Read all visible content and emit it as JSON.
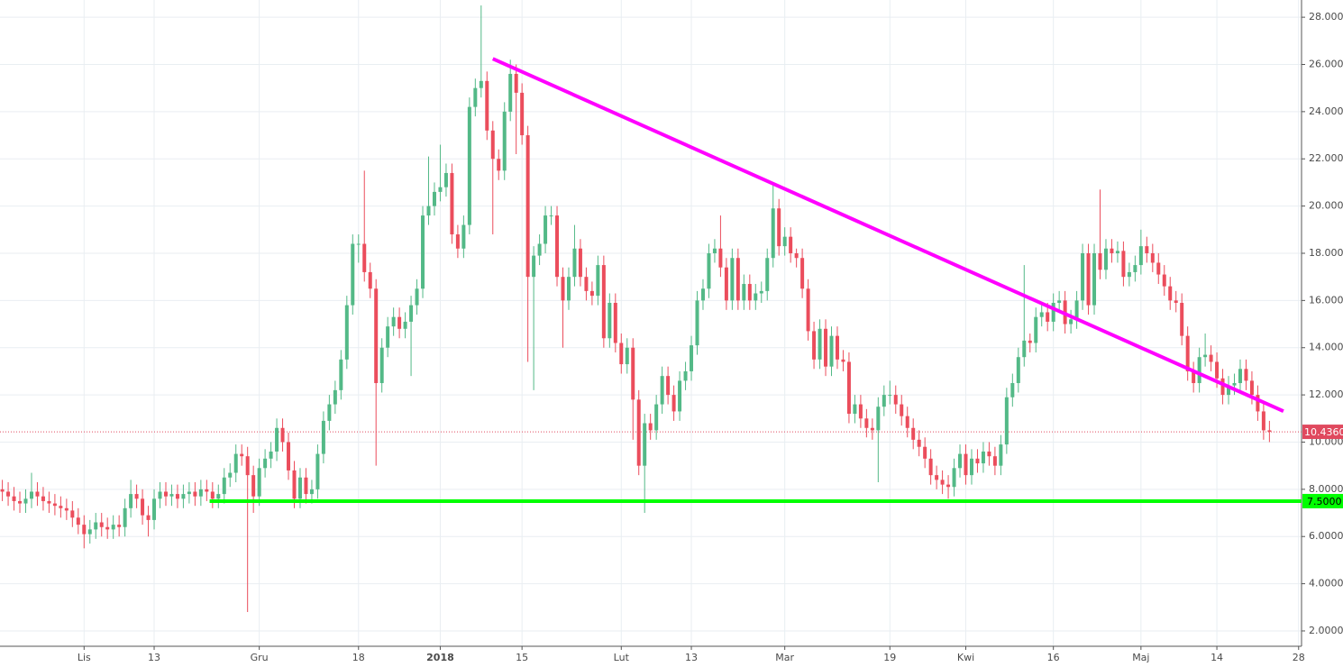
{
  "chart_data": {
    "type": "candlestick",
    "up_color": "#53b987",
    "down_color": "#eb4d5c",
    "grid": true,
    "xlim": [
      -0.4,
      222.5
    ],
    "ylim": [
      1.35,
      28.73
    ],
    "xticks": [
      {
        "value": 14,
        "label": "Lis"
      },
      {
        "value": 26,
        "label": "13"
      },
      {
        "value": 44,
        "label": "Gru"
      },
      {
        "value": 61,
        "label": "18"
      },
      {
        "value": 75,
        "label": "2018"
      },
      {
        "value": 89,
        "label": "15"
      },
      {
        "value": 106,
        "label": "Lut"
      },
      {
        "value": 118,
        "label": "13"
      },
      {
        "value": 134,
        "label": "Mar"
      },
      {
        "value": 152,
        "label": "19"
      },
      {
        "value": 165,
        "label": "Kwi"
      },
      {
        "value": 180,
        "label": "16"
      },
      {
        "value": 195,
        "label": "Maj"
      },
      {
        "value": 208,
        "label": "14"
      },
      {
        "value": 222,
        "label": "28"
      }
    ],
    "yticks": [
      {
        "value": 2,
        "label": "2.0000"
      },
      {
        "value": 4,
        "label": "4.0000"
      },
      {
        "value": 6,
        "label": "6.0000"
      },
      {
        "value": 8,
        "label": "8.0000"
      },
      {
        "value": 10,
        "label": "10.0000"
      },
      {
        "value": 12,
        "label": "12.0000"
      },
      {
        "value": 14,
        "label": "14.0000"
      },
      {
        "value": 16,
        "label": "16.0000"
      },
      {
        "value": 18,
        "label": "18.0000"
      },
      {
        "value": 20,
        "label": "20.0000"
      },
      {
        "value": 22,
        "label": "22.0000"
      },
      {
        "value": 24,
        "label": "24.0000"
      },
      {
        "value": 26,
        "label": "26.0000"
      },
      {
        "value": 28,
        "label": "28.0000"
      }
    ],
    "open": [
      8,
      7.9,
      7.7,
      7.5,
      7.4,
      7.6,
      7.9,
      7.7,
      7.5,
      7.4,
      7.3,
      7.2,
      7.1,
      6.8,
      6.5,
      6.1,
      6.3,
      6.6,
      6.4,
      6.3,
      6.5,
      6.4,
      7.2,
      7.8,
      7.6,
      6.9,
      6.7,
      7.6,
      7.9,
      7.7,
      7.8,
      7.6,
      7.8,
      7.9,
      7.7,
      8,
      7.9,
      7.6,
      7.8,
      8.5,
      8.7,
      9.5,
      9.4,
      8.6,
      7.7,
      8.9,
      9.3,
      9.6,
      10.6,
      10,
      8.8,
      7.6,
      8.5,
      7.8,
      8,
      9.5,
      10.9,
      11.6,
      12.2,
      13.5,
      15.8,
      18.4,
      18.4,
      17.2,
      16.5,
      12.5,
      14,
      14.9,
      15.3,
      14.8,
      15.1,
      15.8,
      16.5,
      19.6,
      20,
      20.6,
      20.8,
      21.4,
      18.8,
      18.2,
      19.2,
      24.2,
      25,
      25.3,
      23.2,
      22,
      21.5,
      24,
      25.6,
      24.8,
      23,
      17,
      17.9,
      18.4,
      19.6,
      19.6,
      17,
      16,
      17,
      18.2,
      17,
      16.4,
      16.2,
      17.5,
      14.4,
      15.9,
      14.2,
      13.3,
      14,
      11.8,
      9,
      10.8,
      10.5,
      11.6,
      12.8,
      12,
      11.3,
      12.6,
      13,
      14.1,
      16,
      16.5,
      18,
      18.2,
      17.4,
      16,
      17.8,
      16,
      16.7,
      16,
      16.3,
      16.4,
      17.8,
      19.9,
      18.3,
      18.7,
      18,
      17.8,
      16.5,
      14.7,
      13.5,
      14.8,
      13.2,
      14.5,
      13.5,
      13.4,
      11.2,
      11.6,
      11,
      10.6,
      10.5,
      11.5,
      12,
      12,
      11.6,
      11.1,
      10.6,
      10.1,
      9.8,
      9.3,
      8.6,
      8.4,
      8.2,
      8.1,
      8.9,
      9.5,
      8.6,
      9.3,
      9.1,
      9.6,
      9.4,
      9,
      9.9,
      11.9,
      12.5,
      13.6,
      14.3,
      14.2,
      15.3,
      15.5,
      15.1,
      15.9,
      16,
      15,
      15.2,
      16,
      18,
      15.8,
      18,
      17.3,
      18.2,
      18,
      18.1,
      17,
      17.2,
      17.5,
      18.3,
      18,
      17.6,
      17.1,
      16.6,
      16,
      15.9,
      14.5,
      13,
      12.5,
      13.6,
      13.7,
      13.4,
      12.7,
      12,
      12.4,
      12.5,
      13.1,
      12.6,
      12,
      11.3,
      10.5
    ],
    "high": [
      8.4,
      8.3,
      8.1,
      7.9,
      8,
      8.7,
      8.3,
      8.1,
      7.9,
      7.8,
      7.7,
      7.6,
      7.5,
      7.2,
      6.9,
      6.7,
      7,
      7,
      6.8,
      6.9,
      6.9,
      7.6,
      8.4,
      8.2,
      8,
      7.3,
      8,
      8.3,
      8.3,
      8.2,
      8.2,
      8.2,
      8.3,
      8.3,
      8.4,
      8.4,
      8.3,
      8.2,
      8.9,
      9.1,
      9.9,
      9.9,
      9.8,
      9,
      9.3,
      9.7,
      10,
      11,
      11,
      10.4,
      9.2,
      8.9,
      8.9,
      8.4,
      9.9,
      11.3,
      12,
      12.6,
      13.9,
      16.2,
      18.8,
      18.8,
      21.5,
      17.6,
      16.9,
      14.4,
      15.3,
      15.7,
      15.7,
      15.5,
      16.2,
      16.9,
      20,
      22.1,
      21,
      22.6,
      21.8,
      21.8,
      19.2,
      19.6,
      24.6,
      25.4,
      28.5,
      25.7,
      23.6,
      22.4,
      24.4,
      26.2,
      26,
      25.2,
      23.4,
      18.3,
      18.8,
      20,
      20,
      20,
      17.4,
      17.4,
      19.2,
      18.6,
      17.4,
      16.8,
      17.9,
      17.9,
      16.3,
      16.3,
      14.6,
      14.4,
      14.4,
      12.2,
      11.2,
      11.2,
      12,
      13.2,
      13.2,
      12.4,
      13,
      13.4,
      14.5,
      16.4,
      16.9,
      18.4,
      18.6,
      19.6,
      17.8,
      18.2,
      18.2,
      17.1,
      17.1,
      16.7,
      16.8,
      18.2,
      20.9,
      20.3,
      19.1,
      19.1,
      18.2,
      18.2,
      16.9,
      15.1,
      15.2,
      15.2,
      14.9,
      14.9,
      13.9,
      13.8,
      12,
      12,
      11.4,
      11,
      11.9,
      12.4,
      12.6,
      12.4,
      12,
      11.5,
      11,
      10.5,
      10.2,
      9.7,
      9,
      8.8,
      8.6,
      9.3,
      9.9,
      9.9,
      9.7,
      9.7,
      10,
      10,
      9.8,
      10.3,
      12.3,
      12.9,
      14,
      17.5,
      14.6,
      15.7,
      15.9,
      15.9,
      16.3,
      16.4,
      16.4,
      15.6,
      16.4,
      18.4,
      18.4,
      18.4,
      20.7,
      18.6,
      18.6,
      18.5,
      18.5,
      17.6,
      17.9,
      19,
      18.7,
      18.4,
      18,
      17.5,
      17,
      16.4,
      16.3,
      14.9,
      13.4,
      14,
      14.6,
      14.1,
      13.8,
      13.1,
      12.8,
      12.9,
      13.5,
      13.5,
      13,
      12.4,
      11.7,
      10.9
    ],
    "low": [
      7.5,
      7.3,
      7.1,
      7,
      7,
      7.2,
      7.3,
      7.1,
      7,
      6.9,
      6.8,
      6.7,
      6.4,
      6.1,
      5.5,
      5.7,
      5.9,
      6,
      5.9,
      5.9,
      6,
      6,
      6.8,
      7.2,
      6.5,
      6,
      6.3,
      7.2,
      7.3,
      7.3,
      7.2,
      7.2,
      7.4,
      7.3,
      7.3,
      7.5,
      7.2,
      7.2,
      7.4,
      8.1,
      8.3,
      9,
      2.8,
      7,
      7.3,
      8.5,
      8.9,
      9.2,
      9.6,
      8.4,
      7.2,
      7.2,
      7.4,
      7.4,
      7.6,
      9.1,
      10.5,
      11.2,
      11.8,
      13.1,
      15.4,
      17.6,
      16.8,
      16.1,
      9,
      12.1,
      13.6,
      14.5,
      14.4,
      14.4,
      12.8,
      15.4,
      16.1,
      19.2,
      19.6,
      20.2,
      20.4,
      18.4,
      17.8,
      17.8,
      18.8,
      23.8,
      24.6,
      22.8,
      18.8,
      21.1,
      21.1,
      23.6,
      22.2,
      22.6,
      13.4,
      12.2,
      17.5,
      18,
      19.2,
      16.6,
      14,
      15.6,
      16.6,
      16.6,
      16,
      15.8,
      15.8,
      14,
      14,
      13.8,
      12.9,
      12.9,
      10.1,
      8.6,
      7,
      10.1,
      10.1,
      11.2,
      11.6,
      10.9,
      10.9,
      12.2,
      12.6,
      13.7,
      15.6,
      16.1,
      17.6,
      17,
      15.6,
      15.6,
      15.6,
      15.6,
      15.6,
      15.6,
      15.9,
      16,
      17.4,
      17.9,
      17.9,
      17.6,
      17.4,
      16.1,
      14.3,
      13.1,
      13.1,
      12.8,
      12.8,
      13.1,
      13,
      10.8,
      10.8,
      10.6,
      10.2,
      10.1,
      8.3,
      11.1,
      11.6,
      11.2,
      10.7,
      10.2,
      9.7,
      9.4,
      8.9,
      8.2,
      8,
      7.8,
      7.6,
      7.7,
      8.5,
      8.2,
      8.2,
      8.7,
      8.7,
      9,
      8.6,
      8.6,
      9.5,
      11.5,
      12.1,
      13.2,
      13.8,
      13.8,
      14.9,
      14.7,
      14.7,
      15.5,
      14.6,
      14.6,
      14.8,
      15.6,
      15.4,
      15.4,
      16.9,
      16.9,
      17.6,
      17.6,
      16.6,
      16.6,
      16.8,
      17.1,
      17.6,
      17.2,
      16.7,
      16.2,
      15.6,
      15.5,
      14.1,
      12.6,
      12.1,
      12.1,
      13.2,
      13,
      12.3,
      11.6,
      11.6,
      12,
      12.1,
      12.2,
      11.6,
      10.9,
      10.1,
      10
    ],
    "close": [
      7.9,
      7.7,
      7.5,
      7.4,
      7.6,
      7.9,
      7.7,
      7.5,
      7.4,
      7.3,
      7.2,
      7.1,
      6.8,
      6.5,
      6.1,
      6.3,
      6.6,
      6.4,
      6.3,
      6.5,
      6.4,
      7.2,
      7.8,
      7.6,
      6.9,
      6.7,
      7.6,
      7.9,
      7.7,
      7.8,
      7.6,
      7.8,
      7.9,
      7.7,
      8,
      7.9,
      7.6,
      7.8,
      8.5,
      8.7,
      9.5,
      9.4,
      8.6,
      7.7,
      8.9,
      9.3,
      9.6,
      10.6,
      10,
      8.8,
      7.6,
      8.5,
      7.8,
      8,
      9.5,
      10.9,
      11.6,
      12.2,
      13.5,
      15.8,
      18.4,
      18.4,
      17.2,
      16.5,
      12.5,
      14,
      14.9,
      15.3,
      14.8,
      15.1,
      15.8,
      16.5,
      19.6,
      20,
      20.6,
      20.8,
      21.4,
      18.8,
      18.2,
      19.2,
      24.2,
      25,
      25.3,
      23.2,
      22,
      21.5,
      24,
      25.6,
      24.8,
      23,
      17,
      17.9,
      18.4,
      19.6,
      19.6,
      17,
      16,
      17,
      18.2,
      17,
      16.4,
      16.2,
      17.5,
      14.4,
      15.9,
      14.2,
      13.3,
      14,
      11.8,
      9,
      10.8,
      10.5,
      11.6,
      12.8,
      12,
      11.3,
      12.6,
      13,
      14.1,
      16,
      16.5,
      18,
      18.2,
      17.4,
      16,
      17.8,
      16,
      16.7,
      16,
      16.3,
      16.4,
      17.8,
      19.9,
      18.3,
      18.7,
      18,
      17.8,
      16.5,
      14.7,
      13.5,
      14.8,
      13.2,
      14.5,
      13.5,
      13.4,
      11.2,
      11.6,
      11,
      10.6,
      10.5,
      11.5,
      12,
      12,
      11.6,
      11.1,
      10.6,
      10.1,
      9.8,
      9.3,
      8.6,
      8.4,
      8.2,
      8.1,
      8.9,
      9.5,
      8.6,
      9.3,
      9.1,
      9.6,
      9.4,
      9,
      9.9,
      11.9,
      12.5,
      13.6,
      14.3,
      14.2,
      15.3,
      15.5,
      15.1,
      15.9,
      16,
      15,
      15.2,
      16,
      18,
      15.8,
      18,
      17.3,
      18.2,
      18,
      18.1,
      17,
      17.2,
      17.5,
      18.3,
      18,
      17.6,
      17.1,
      16.6,
      16,
      15.9,
      14.5,
      13,
      12.5,
      13.6,
      13.7,
      13.4,
      12.7,
      12,
      12.4,
      12.5,
      13.1,
      12.6,
      12,
      11.3,
      10.5,
      10.436
    ],
    "trendlines": [
      {
        "color": "#ff00ff",
        "x": [
          84,
          219.4
        ],
        "y": [
          26.24,
          11.31
        ]
      }
    ],
    "hlines": [
      {
        "value": 7.5,
        "label": "7.5000",
        "color": "#00ff00",
        "from": 35.5
      }
    ],
    "last_price": {
      "value": 10.436,
      "label": "10.4360",
      "color": "#e0495e"
    }
  }
}
